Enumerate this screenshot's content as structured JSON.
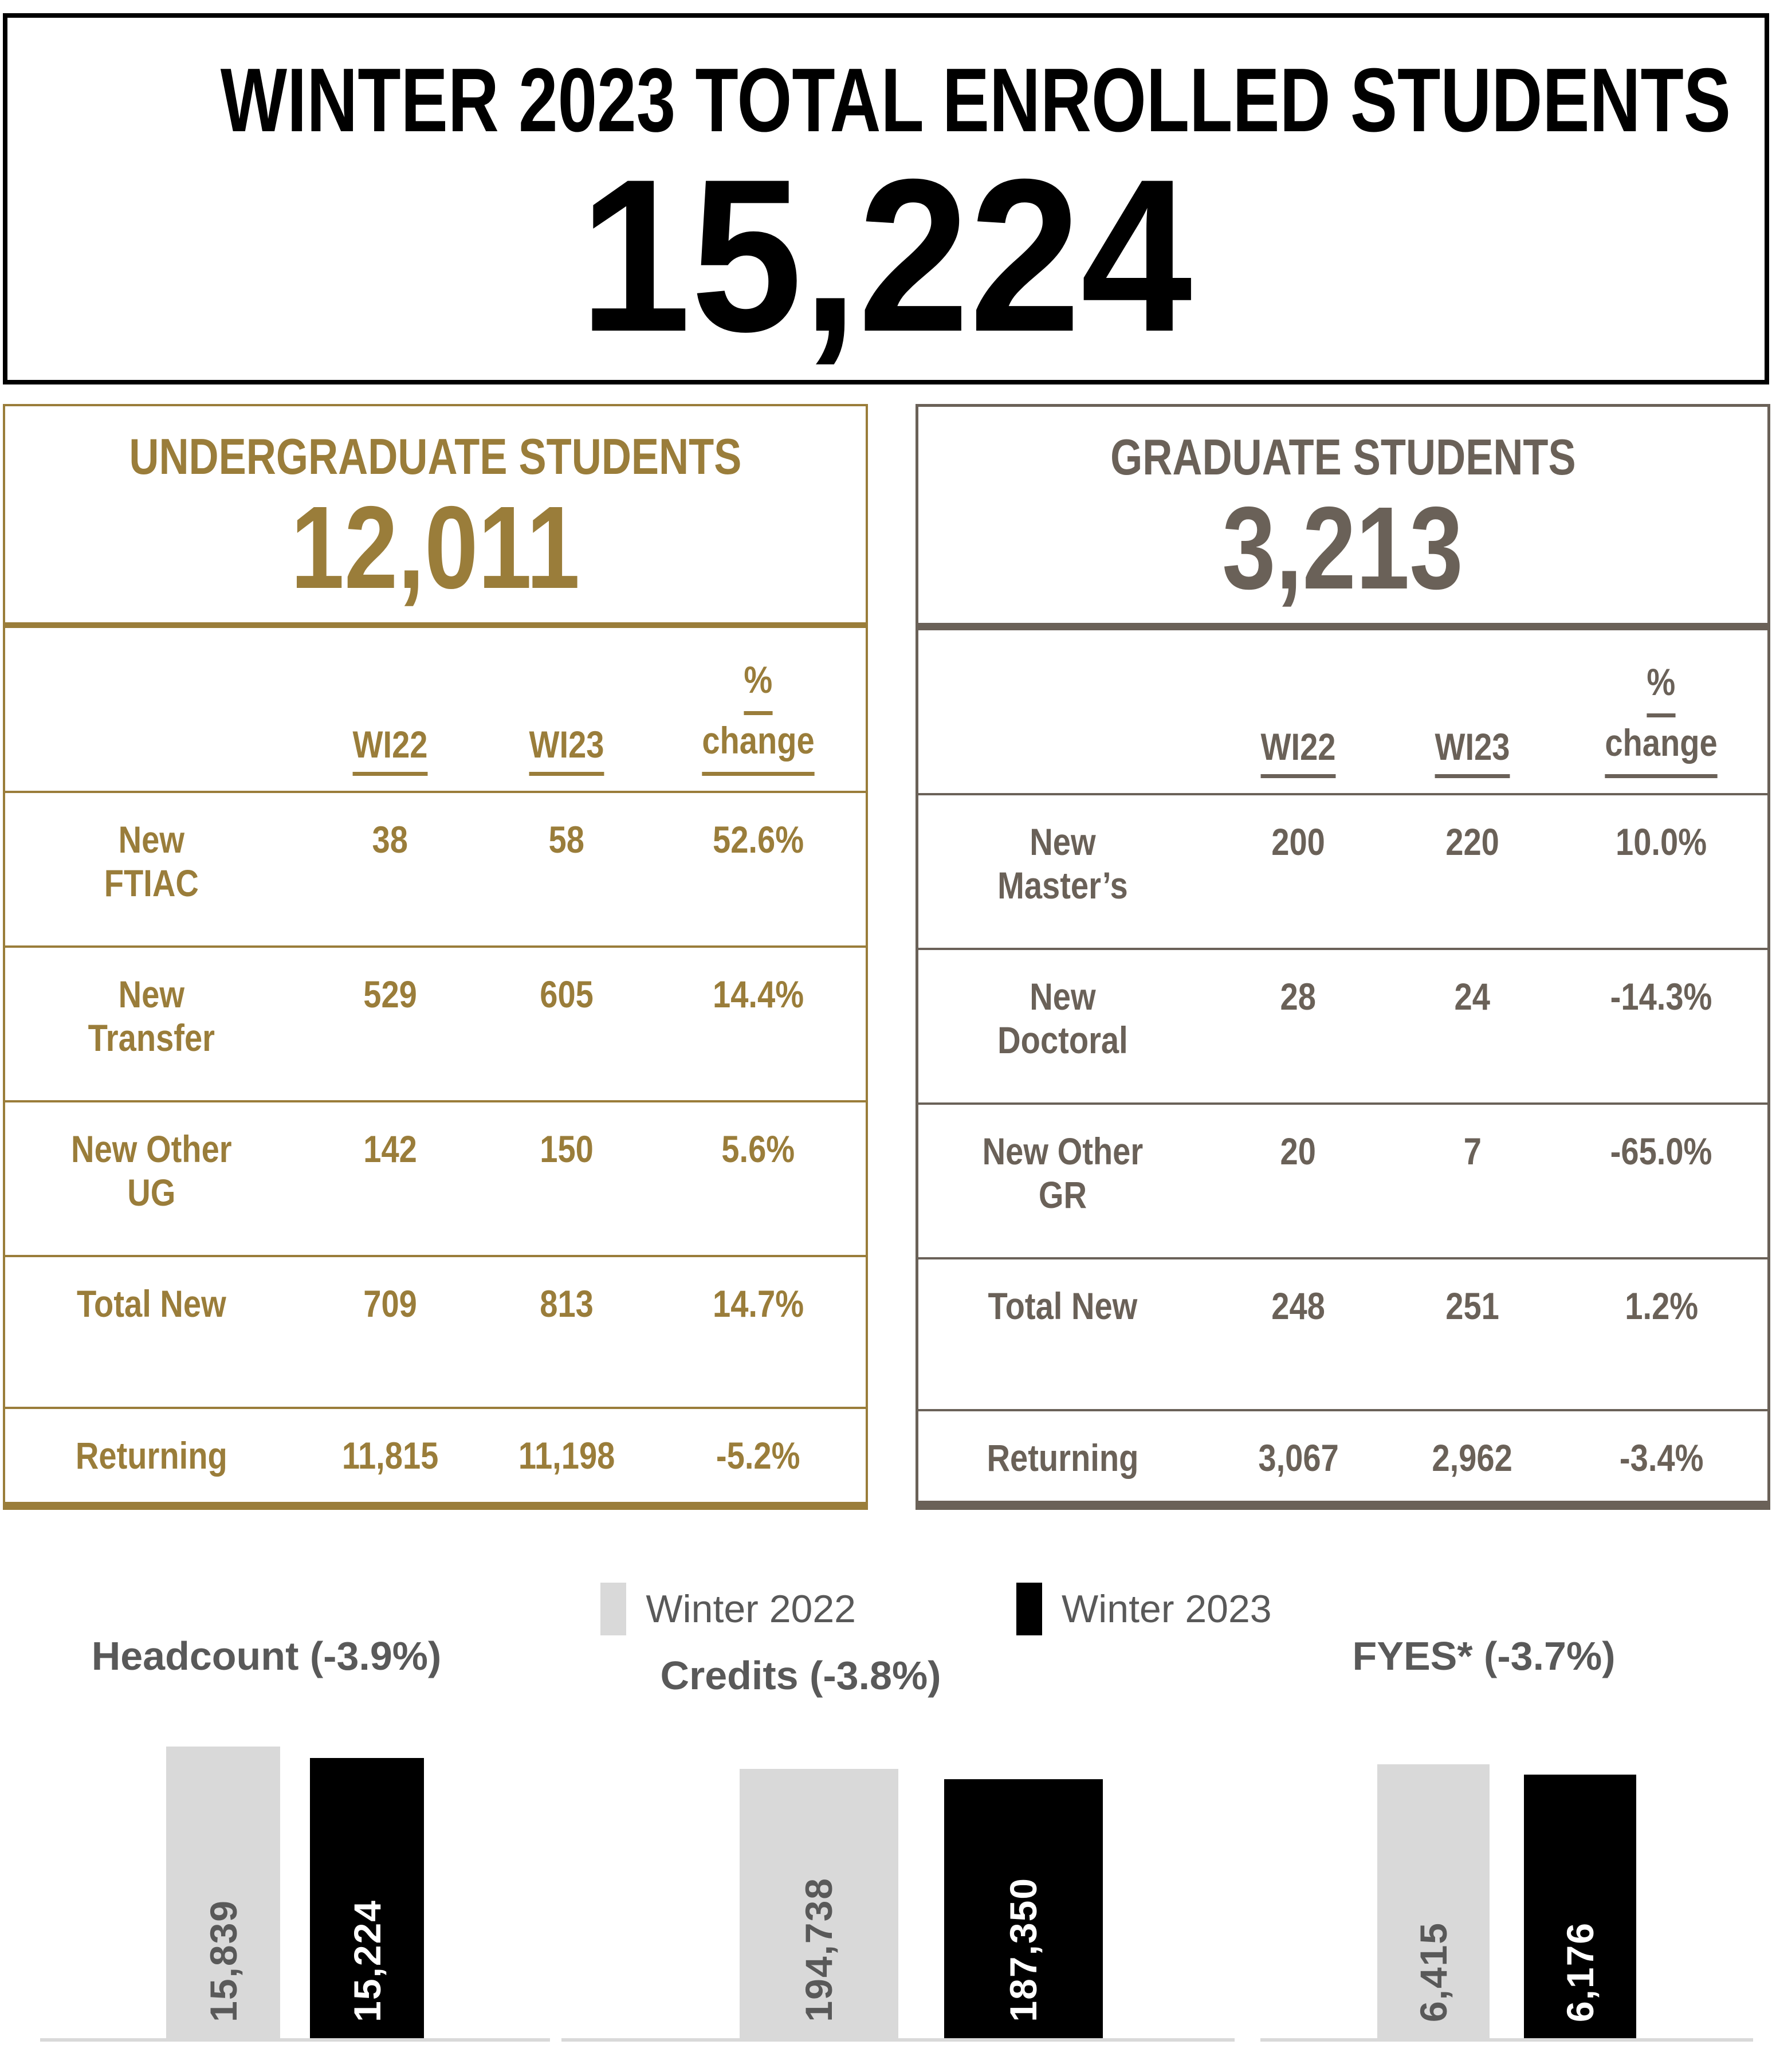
{
  "header": {
    "title": "WINTER 2023 TOTAL ENROLLED STUDENTS",
    "total": "15,224"
  },
  "colors": {
    "undergraduate_gold": "#9A7D3A",
    "graduate_taupe": "#6A6158",
    "chart_text_gray": "#595959",
    "bar_gray": "#D9D9D9",
    "bar_black": "#000000"
  },
  "undergraduate": {
    "title": "UNDERGRADUATE STUDENTS",
    "total": "12,011",
    "col_wi22": "WI22",
    "col_wi23": "WI23",
    "col_pct_line1": "%",
    "col_pct_line2": "change",
    "rows": [
      {
        "label1": "New",
        "label2": "FTIAC",
        "wi22": "38",
        "wi23": "58",
        "pct": "52.6%"
      },
      {
        "label1": "New",
        "label2": "Transfer",
        "wi22": "529",
        "wi23": "605",
        "pct": "14.4%"
      },
      {
        "label1": "New Other",
        "label2": "UG",
        "wi22": "142",
        "wi23": "150",
        "pct": "5.6%"
      },
      {
        "label1": "Total New",
        "label2": "",
        "wi22": "709",
        "wi23": "813",
        "pct": "14.7%"
      },
      {
        "label1": "Returning",
        "label2": "",
        "wi22": "11,815",
        "wi23": "11,198",
        "pct": "-5.2%"
      }
    ]
  },
  "graduate": {
    "title": "GRADUATE STUDENTS",
    "total": "3,213",
    "col_wi22": "WI22",
    "col_wi23": "WI23",
    "col_pct_line1": "%",
    "col_pct_line2": "change",
    "rows": [
      {
        "label1": "New",
        "label2": "Master’s",
        "wi22": "200",
        "wi23": "220",
        "pct": "10.0%"
      },
      {
        "label1": "New",
        "label2": "Doctoral",
        "wi22": "28",
        "wi23": "24",
        "pct": "-14.3%"
      },
      {
        "label1": "New Other",
        "label2": "GR",
        "wi22": "20",
        "wi23": "7",
        "pct": "-65.0%"
      },
      {
        "label1": "Total New",
        "label2": "",
        "wi22": "248",
        "wi23": "251",
        "pct": "1.2%"
      },
      {
        "label1": "Returning",
        "label2": "",
        "wi22": "3,067",
        "wi23": "2,962",
        "pct": "-3.4%"
      }
    ]
  },
  "legend": {
    "items": [
      {
        "label": "Winter 2022",
        "color": "#D9D9D9"
      },
      {
        "label": "Winter 2023",
        "color": "#000000"
      }
    ]
  },
  "chart_data": [
    {
      "type": "bar",
      "title": "Headcount (-3.9%)",
      "pct_change": "-3.9%",
      "categories": [
        "Winter 2022",
        "Winter 2023"
      ],
      "values": [
        15839,
        15224
      ],
      "value_labels": [
        "15,839",
        "15,224"
      ],
      "colors": [
        "#D9D9D9",
        "#000000"
      ],
      "ylim": [
        0,
        15839
      ],
      "grid": false,
      "legend_position": "top-center"
    },
    {
      "type": "bar",
      "title": "Credits (-3.8%)",
      "pct_change": "-3.8%",
      "categories": [
        "Winter 2022",
        "Winter 2023"
      ],
      "values": [
        194738,
        187350
      ],
      "value_labels": [
        "194,738",
        "187,350"
      ],
      "colors": [
        "#D9D9D9",
        "#000000"
      ],
      "ylim": [
        0,
        194738
      ],
      "grid": false,
      "legend_position": "top-center"
    },
    {
      "type": "bar",
      "title": "FYES* (-3.7%)",
      "pct_change": "-3.7%",
      "categories": [
        "Winter 2022",
        "Winter 2023"
      ],
      "values": [
        6415,
        6176
      ],
      "value_labels": [
        "6,415",
        "6,176"
      ],
      "colors": [
        "#D9D9D9",
        "#000000"
      ],
      "ylim": [
        0,
        6415
      ],
      "grid": false,
      "legend_position": "top-center"
    }
  ]
}
